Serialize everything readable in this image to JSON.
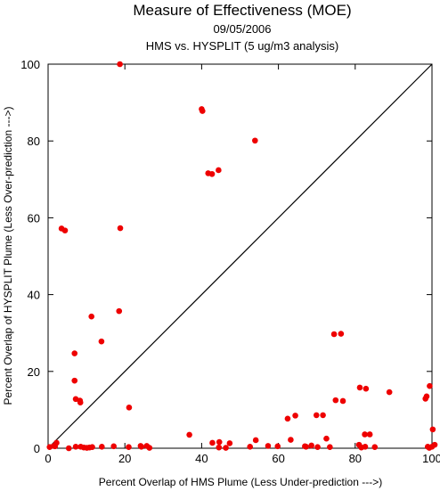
{
  "chart_data": {
    "type": "scatter",
    "title": "Measure of Effectiveness (MOE)",
    "subtitle_date": "09/05/2006",
    "subtitle_analysis": "HMS vs. HYSPLIT  (5 ug/m3 analysis)",
    "xlabel": "Percent Overlap of HMS Plume (Less Under-prediction --->)",
    "ylabel": "Percent Overlap of HYSPLIT Plume (Less Over-prediction --->)",
    "xlim": [
      0,
      100
    ],
    "ylim": [
      0,
      100
    ],
    "x_ticks": [
      "0",
      "20",
      "40",
      "60",
      "80",
      "100"
    ],
    "y_ticks": [
      "0",
      "20",
      "40",
      "60",
      "80",
      "100"
    ],
    "reference_line": "1:1 diagonal",
    "grid": false,
    "marker_color": "#ee0000",
    "points": [
      [
        18.7,
        100.0
      ],
      [
        40.0,
        88.3
      ],
      [
        40.2,
        87.8
      ],
      [
        53.9,
        80.1
      ],
      [
        44.4,
        72.4
      ],
      [
        41.7,
        71.6
      ],
      [
        42.7,
        71.4
      ],
      [
        3.5,
        57.2
      ],
      [
        4.4,
        56.7
      ],
      [
        18.8,
        57.3
      ],
      [
        18.5,
        35.7
      ],
      [
        11.3,
        34.3
      ],
      [
        13.9,
        27.8
      ],
      [
        74.5,
        29.7
      ],
      [
        76.3,
        29.8
      ],
      [
        6.9,
        24.7
      ],
      [
        6.9,
        17.6
      ],
      [
        81.2,
        15.8
      ],
      [
        82.8,
        15.5
      ],
      [
        99.4,
        16.2
      ],
      [
        88.9,
        14.6
      ],
      [
        98.6,
        13.5
      ],
      [
        98.3,
        12.9
      ],
      [
        74.9,
        12.5
      ],
      [
        76.8,
        12.3
      ],
      [
        7.2,
        12.8
      ],
      [
        8.3,
        12.4
      ],
      [
        8.4,
        11.9
      ],
      [
        21.1,
        10.6
      ],
      [
        69.9,
        8.6
      ],
      [
        71.6,
        8.6
      ],
      [
        64.4,
        8.5
      ],
      [
        62.4,
        7.7
      ],
      [
        100.2,
        4.9
      ],
      [
        82.5,
        3.6
      ],
      [
        83.8,
        3.6
      ],
      [
        36.8,
        3.5
      ],
      [
        72.5,
        2.5
      ],
      [
        54.1,
        2.1
      ],
      [
        63.2,
        2.2
      ],
      [
        42.8,
        1.4
      ],
      [
        44.6,
        1.6
      ],
      [
        47.3,
        1.3
      ],
      [
        2.2,
        1.4
      ],
      [
        1.5,
        0.6
      ],
      [
        0.4,
        0.3
      ],
      [
        1.8,
        0.5
      ],
      [
        7.2,
        0.4
      ],
      [
        8.5,
        0.4
      ],
      [
        9.3,
        0.2
      ],
      [
        10.1,
        0.1
      ],
      [
        10.8,
        0.2
      ],
      [
        11.5,
        0.3
      ],
      [
        14.0,
        0.4
      ],
      [
        17.1,
        0.5
      ],
      [
        21.0,
        0.3
      ],
      [
        24.1,
        0.6
      ],
      [
        25.7,
        0.6
      ],
      [
        26.4,
        0.1
      ],
      [
        44.5,
        0.2
      ],
      [
        46.3,
        0.1
      ],
      [
        52.6,
        0.4
      ],
      [
        57.3,
        0.6
      ],
      [
        59.8,
        0.5
      ],
      [
        67.2,
        0.4
      ],
      [
        68.6,
        0.7
      ],
      [
        70.2,
        0.3
      ],
      [
        73.4,
        0.3
      ],
      [
        81.0,
        0.9
      ],
      [
        81.6,
        0.2
      ],
      [
        82.6,
        0.4
      ],
      [
        85.1,
        0.3
      ],
      [
        99.3,
        0.1
      ],
      [
        100.0,
        0.4
      ],
      [
        100.7,
        0.9
      ],
      [
        5.4,
        0.0
      ],
      [
        24.3,
        0.4
      ],
      [
        66.9,
        0.5
      ],
      [
        98.9,
        0.4
      ]
    ]
  }
}
